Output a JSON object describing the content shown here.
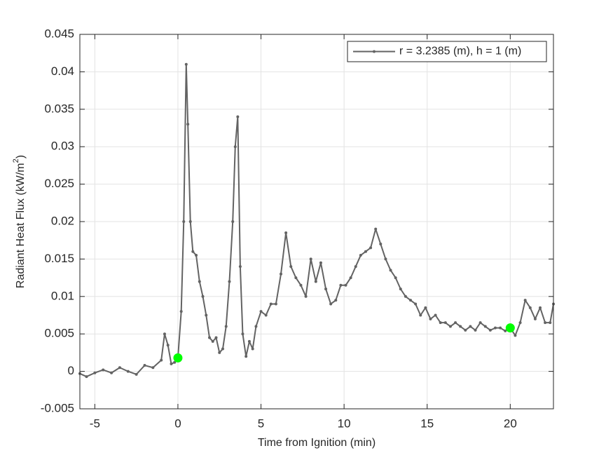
{
  "chart_data": {
    "type": "line",
    "x_label": "Time from Ignition (min)",
    "y_label": [
      "Radiant Heat Flux (kW/m",
      "2",
      ")"
    ],
    "xlim": [
      -5.9,
      22.6
    ],
    "ylim": [
      -0.005,
      0.045
    ],
    "xticks": [
      -5,
      0,
      5,
      10,
      15,
      20
    ],
    "yticks": [
      -0.005,
      0,
      0.005,
      0.01,
      0.015,
      0.02,
      0.025,
      0.03,
      0.035,
      0.04,
      0.045
    ],
    "grid": true,
    "legend": "top-right",
    "x": [
      -5.9,
      -5.5,
      -5.0,
      -4.5,
      -4.0,
      -3.5,
      -3.0,
      -2.5,
      -2.0,
      -1.5,
      -1.0,
      -0.8,
      -0.6,
      -0.4,
      -0.2,
      0,
      0.2,
      0.35,
      0.5,
      0.6,
      0.75,
      0.9,
      1.1,
      1.3,
      1.5,
      1.7,
      1.9,
      2.1,
      2.3,
      2.5,
      2.7,
      2.9,
      3.1,
      3.3,
      3.45,
      3.6,
      3.75,
      3.9,
      4.1,
      4.3,
      4.5,
      4.7,
      5.0,
      5.3,
      5.6,
      5.9,
      6.2,
      6.5,
      6.8,
      7.1,
      7.4,
      7.7,
      8.0,
      8.3,
      8.6,
      8.9,
      9.2,
      9.5,
      9.8,
      10.1,
      10.4,
      10.7,
      11.0,
      11.3,
      11.6,
      11.9,
      12.2,
      12.5,
      12.8,
      13.1,
      13.4,
      13.7,
      14.0,
      14.3,
      14.6,
      14.9,
      15.2,
      15.5,
      15.8,
      16.1,
      16.4,
      16.7,
      17.0,
      17.3,
      17.6,
      17.9,
      18.2,
      18.5,
      18.8,
      19.1,
      19.4,
      19.7,
      20.0,
      20.3,
      20.6,
      20.9,
      21.2,
      21.5,
      21.8,
      22.1,
      22.4,
      22.6
    ],
    "series": [
      {
        "name": "r = 3.2385 (m), h = 1 (m)",
        "color": "#636363",
        "values": [
          -0.0003,
          -0.0007,
          -0.0002,
          0.0002,
          -0.0002,
          0.0005,
          0.0,
          -0.0004,
          0.0008,
          0.0005,
          0.0015,
          0.005,
          0.0035,
          0.001,
          0.0012,
          0.0018,
          0.008,
          0.02,
          0.041,
          0.033,
          0.02,
          0.016,
          0.0155,
          0.012,
          0.01,
          0.0075,
          0.0045,
          0.004,
          0.0045,
          0.0025,
          0.003,
          0.006,
          0.012,
          0.02,
          0.03,
          0.034,
          0.014,
          0.005,
          0.002,
          0.004,
          0.003,
          0.006,
          0.008,
          0.0075,
          0.009,
          0.009,
          0.013,
          0.0185,
          0.014,
          0.0125,
          0.0115,
          0.01,
          0.015,
          0.012,
          0.0145,
          0.011,
          0.009,
          0.0095,
          0.0115,
          0.0115,
          0.0125,
          0.014,
          0.0155,
          0.016,
          0.0165,
          0.019,
          0.017,
          0.015,
          0.0135,
          0.0125,
          0.011,
          0.01,
          0.0095,
          0.009,
          0.0075,
          0.0085,
          0.007,
          0.0075,
          0.0065,
          0.0065,
          0.006,
          0.0065,
          0.006,
          0.0055,
          0.006,
          0.0055,
          0.0065,
          0.006,
          0.0055,
          0.0058,
          0.0058,
          0.0054,
          0.0058,
          0.0048,
          0.0065,
          0.0095,
          0.0085,
          0.007,
          0.0085,
          0.0065,
          0.0065,
          0.009
        ]
      }
    ],
    "highlights": {
      "color": "#00ff00",
      "x": [
        0,
        20
      ],
      "values": [
        0.0018,
        0.0058
      ]
    }
  }
}
